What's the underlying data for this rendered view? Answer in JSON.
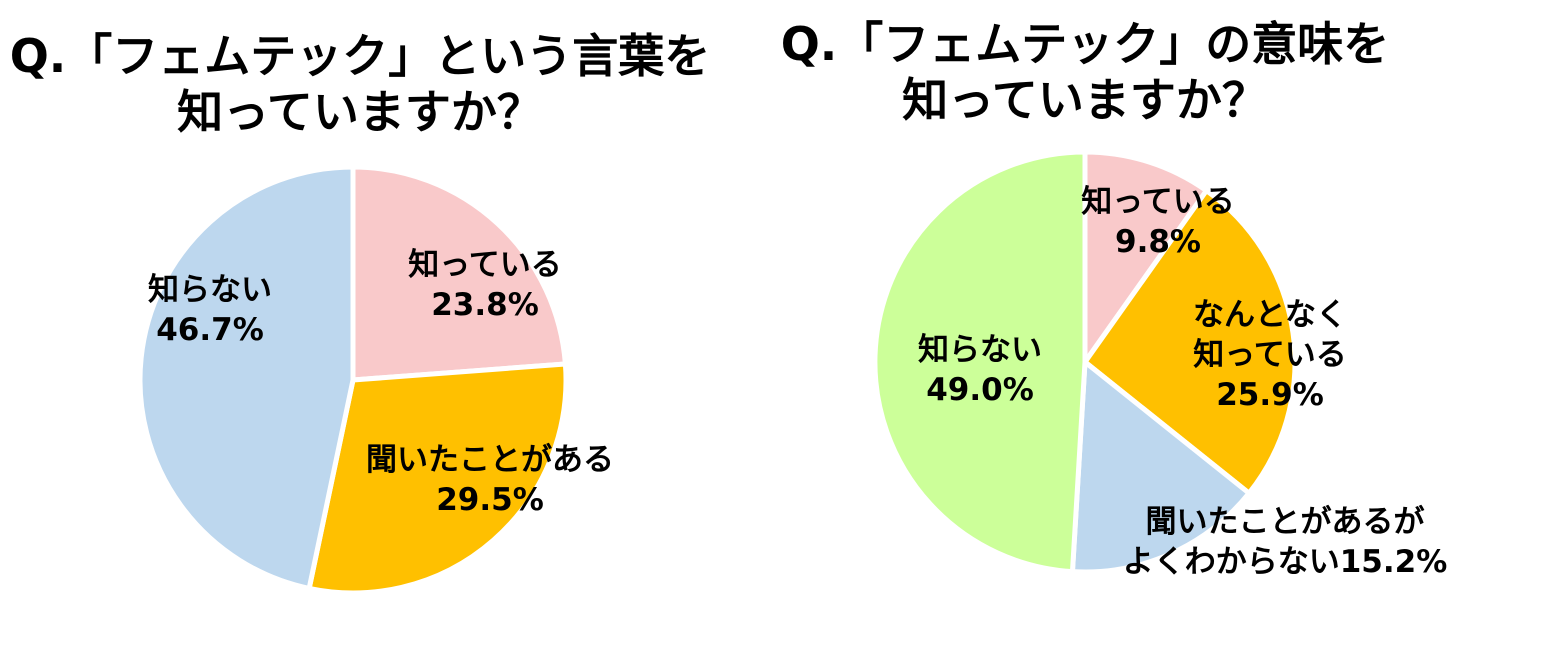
{
  "charts": [
    {
      "title": [
        "Q.「フェムテック」という言葉を",
        "知っていますか？"
      ],
      "chart_data": {
        "type": "pie",
        "title": "Q.「フェムテック」という言葉を知っていますか？",
        "categories": [
          "知っている",
          "聞いたことがある",
          "知らない"
        ],
        "values": [
          23.8,
          29.5,
          46.7
        ],
        "colors": [
          "#F9C9CA",
          "#FFC000",
          "#BDD7EE"
        ],
        "labels": [
          {
            "lines": [
              "知っている"
            ],
            "value": "23.8%"
          },
          {
            "lines": [
              "聞いたことがある"
            ],
            "value": "29.5%"
          },
          {
            "lines": [
              "知らない"
            ],
            "value": "46.7%"
          }
        ]
      }
    },
    {
      "title": [
        "Q.「フェムテック」の意味を",
        "知っていますか？"
      ],
      "chart_data": {
        "type": "pie",
        "title": "Q.「フェムテック」の意味を知っていますか？",
        "categories": [
          "知っている",
          "なんとなく知っている",
          "聞いたことがあるがよくわからない",
          "知らない"
        ],
        "values": [
          9.8,
          25.9,
          15.2,
          49.0
        ],
        "colors": [
          "#F9C9CA",
          "#FFC000",
          "#BDD7EE",
          "#CCFF99"
        ],
        "labels": [
          {
            "lines": [
              "知っている"
            ],
            "value": "9.8%"
          },
          {
            "lines": [
              "なんとなく",
              "知っている"
            ],
            "value": "25.9%"
          },
          {
            "lines": [
              "聞いたことがあるが",
              "よくわからない15.2%"
            ],
            "value": ""
          },
          {
            "lines": [
              "知らない"
            ],
            "value": "49.0%"
          }
        ]
      }
    }
  ]
}
